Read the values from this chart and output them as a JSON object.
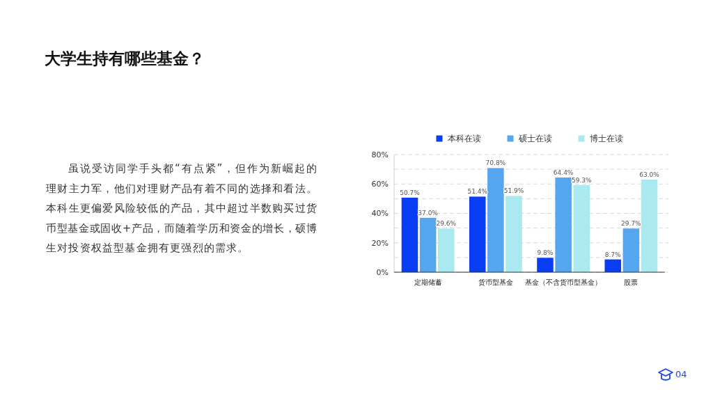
{
  "chart_data": {
    "type": "bar",
    "title": "大学生持有哪些基金？",
    "categories": [
      "定期储蓄",
      "货币型基金",
      "基金（不含货币型基金）",
      "股票"
    ],
    "series": [
      {
        "name": "本科在读",
        "color": "#0a3ef5",
        "values": [
          50.7,
          51.4,
          9.8,
          8.7
        ],
        "value_labels": [
          "50.7%",
          "51.4%",
          "9.8%",
          "8.7%"
        ]
      },
      {
        "name": "硕士在读",
        "color": "#56a5ef",
        "values": [
          37.0,
          70.8,
          64.4,
          29.7
        ],
        "value_labels": [
          "37.0%",
          "70.8%",
          "64.4%",
          "29.7%"
        ]
      },
      {
        "name": "博士在读",
        "color": "#a9e9ef",
        "values": [
          29.6,
          51.9,
          59.3,
          63.0
        ],
        "value_labels": [
          "29.6%",
          "51.9%",
          "59.3%",
          "63.0%"
        ]
      }
    ],
    "ylim": [
      0,
      80
    ],
    "yticks": [
      {
        "value": 0,
        "label": "0%"
      },
      {
        "value": 10,
        "label": null
      },
      {
        "value": 20,
        "label": "20%"
      },
      {
        "value": 30,
        "label": null
      },
      {
        "value": 40,
        "label": "40%"
      },
      {
        "value": 50,
        "label": null
      },
      {
        "value": 60,
        "label": "60%"
      },
      {
        "value": 70,
        "label": null
      },
      {
        "value": 80,
        "label": "80%"
      }
    ],
    "grid": "y",
    "legend": "top",
    "annotations": [
      "虽说受访同学手头都“有点紧”，但作为新崛起的理财主力军，他们对理财产品有着不同的选择和看法。本科生更偏爱风险较低的产品，其中超过半数购买过货币型基金或固收+产品，而随着学历和资金的增长，硕博生对投资权益型基金拥有更强烈的需求。",
      "04"
    ]
  }
}
